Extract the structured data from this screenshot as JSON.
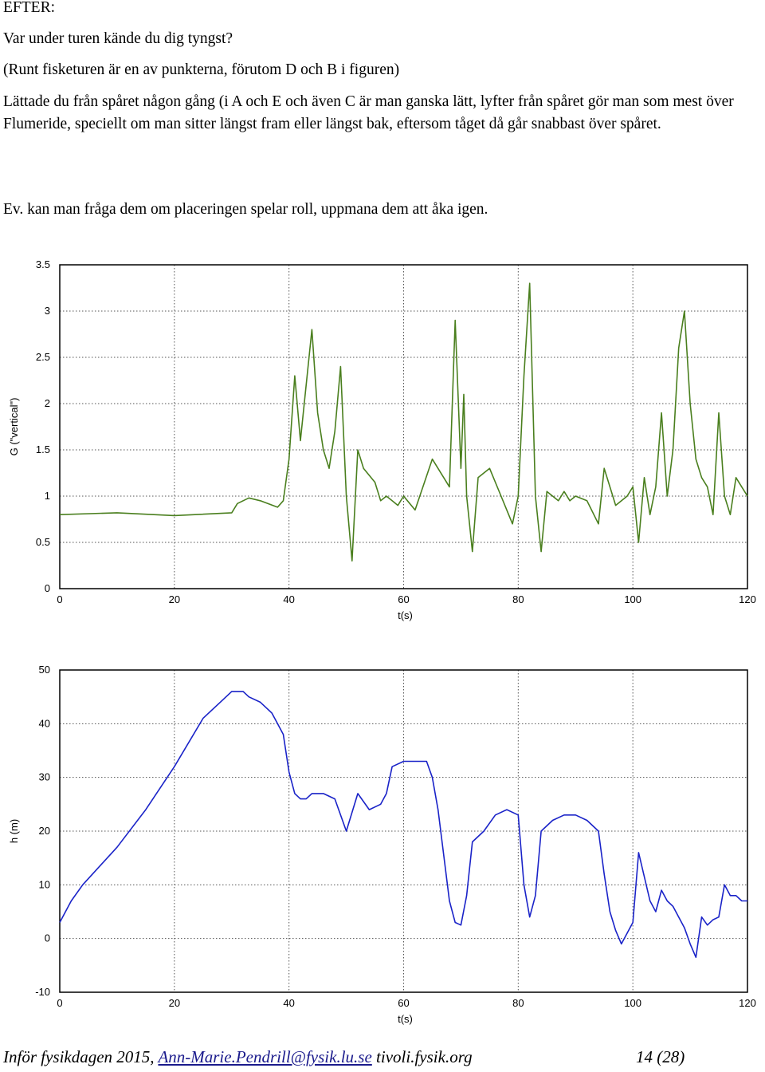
{
  "heading": "EFTER:",
  "question": "Var under turen kände du dig tyngst?",
  "note": "(Runt fisketuren är en av punkterna, förutom D och B i figuren)",
  "paragraph": "Lättade du från spåret någon gång (i A och E och även C är man ganska lätt, lyfter från spåret gör man som mest över Flumeride, speciellt om man sitter längst fram eller längst bak, eftersom tåget då går snabbast över spåret.",
  "suggestion": "Ev. kan man fråga dem om placeringen spelar roll, uppmana dem att åka igen.",
  "footer": {
    "prefix": "Inför fysikdagen 2015,",
    "email": "Ann-Marie.Pendrill@fysik.lu.se",
    "site": "tivoli.fysik.org",
    "page": "14 (28)"
  },
  "chart_data": [
    {
      "type": "line",
      "title": "",
      "xlabel": "t(s)",
      "ylabel": "G (\"vertical\")",
      "xlim": [
        0,
        120
      ],
      "ylim": [
        0,
        3.5
      ],
      "xticks": [
        "0",
        "20",
        "40",
        "60",
        "80",
        "100",
        "120"
      ],
      "yticks": [
        "0",
        "0.5",
        "1",
        "1.5",
        "2",
        "2.5",
        "3",
        "3.5"
      ],
      "grid": true,
      "color": "#4a7f1e",
      "series": [
        {
          "name": "",
          "x": [
            0,
            10,
            20,
            30,
            31,
            33,
            35,
            38,
            39,
            40,
            41,
            42,
            44,
            45,
            46,
            47,
            48,
            49,
            50,
            51,
            52,
            53,
            55,
            56,
            57,
            58,
            59,
            60,
            62,
            65,
            68,
            69,
            70,
            70.5,
            71,
            72,
            73,
            75,
            77,
            79,
            80,
            81,
            82,
            83,
            84,
            85,
            86,
            87,
            88,
            89,
            90,
            92,
            94,
            95,
            97,
            99,
            100,
            101,
            102,
            103,
            104,
            105,
            106,
            107,
            108,
            109,
            110,
            111,
            112,
            113,
            114,
            115,
            116,
            117,
            118,
            119,
            120
          ],
          "y": [
            0.8,
            0.82,
            0.79,
            0.82,
            0.92,
            0.98,
            0.95,
            0.88,
            0.95,
            1.4,
            2.3,
            1.6,
            2.8,
            1.9,
            1.5,
            1.3,
            1.7,
            2.4,
            1.0,
            0.3,
            1.5,
            1.3,
            1.15,
            0.95,
            1.0,
            0.95,
            0.9,
            1.0,
            0.85,
            1.4,
            1.1,
            2.9,
            1.3,
            2.1,
            1.0,
            0.4,
            1.2,
            1.3,
            1.0,
            0.7,
            1.0,
            2.3,
            3.3,
            1.0,
            0.4,
            1.05,
            1.0,
            0.95,
            1.05,
            0.95,
            1.0,
            0.95,
            0.7,
            1.3,
            0.9,
            1.0,
            1.1,
            0.5,
            1.2,
            0.8,
            1.1,
            1.9,
            1.0,
            1.5,
            2.6,
            3.0,
            2.0,
            1.4,
            1.2,
            1.1,
            0.8,
            1.9,
            1.0,
            0.8,
            1.2,
            1.1,
            1.0
          ]
        }
      ]
    },
    {
      "type": "line",
      "title": "",
      "xlabel": "t(s)",
      "ylabel": "h (m)",
      "xlim": [
        0,
        120
      ],
      "ylim": [
        -10,
        50
      ],
      "xticks": [
        "0",
        "20",
        "40",
        "60",
        "80",
        "100",
        "120"
      ],
      "yticks": [
        "-10",
        "0",
        "10",
        "20",
        "30",
        "40",
        "50"
      ],
      "grid": true,
      "color": "#1a23c8",
      "series": [
        {
          "name": "",
          "x": [
            0,
            2,
            4,
            10,
            15,
            20,
            25,
            28,
            30,
            32,
            33,
            35,
            37,
            38,
            39,
            40,
            41,
            42,
            43,
            44,
            46,
            48,
            50,
            52,
            54,
            56,
            57,
            58,
            60,
            62,
            64,
            65,
            66,
            68,
            69,
            70,
            71,
            72,
            74,
            76,
            78,
            80,
            81,
            82,
            83,
            84,
            86,
            88,
            90,
            92,
            94,
            95,
            96,
            97,
            98,
            100,
            101,
            103,
            104,
            105,
            106,
            107,
            108,
            109,
            110,
            111,
            112,
            113,
            114,
            115,
            116,
            117,
            118,
            119,
            120
          ],
          "y": [
            3,
            7,
            10,
            17,
            24,
            32,
            41,
            44,
            46,
            46,
            45,
            44,
            42,
            40,
            38,
            31,
            27,
            26,
            26,
            27,
            27,
            26,
            20,
            27,
            24,
            25,
            27,
            32,
            33,
            33,
            33,
            30,
            24,
            7,
            3,
            2.5,
            8,
            18,
            20,
            23,
            24,
            23,
            10,
            4,
            8,
            20,
            22,
            23,
            23,
            22,
            20,
            12,
            5,
            1.5,
            -1,
            3,
            16,
            7,
            5,
            9,
            7,
            6,
            4,
            2,
            -1,
            -3.5,
            4,
            2.5,
            3.5,
            4,
            10,
            8,
            8,
            7,
            7
          ]
        }
      ]
    }
  ]
}
